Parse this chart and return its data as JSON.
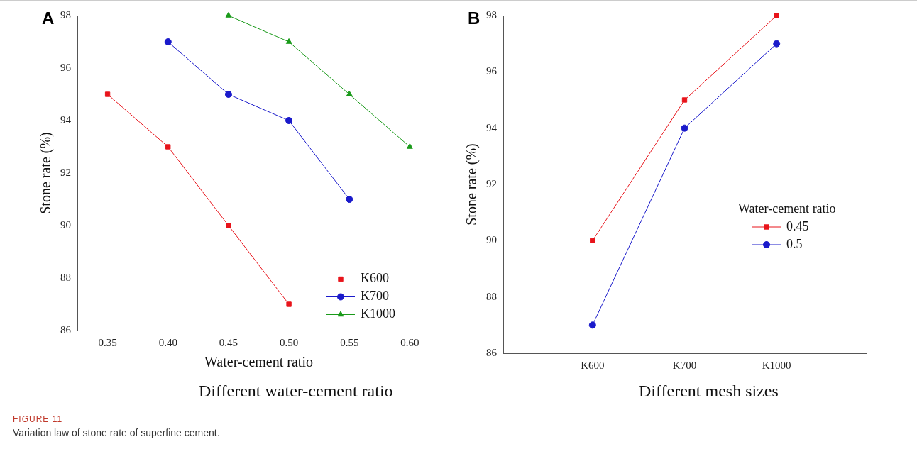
{
  "chart_data": [
    {
      "type": "line",
      "title": "A",
      "xlabel": "Water-cement ratio",
      "ylabel": "Stone rate (%)",
      "xlim": [
        0.325,
        0.625
      ],
      "xticks": [
        {
          "value": 0.35,
          "label": "0.35"
        },
        {
          "value": 0.4,
          "label": "0.40"
        },
        {
          "value": 0.45,
          "label": "0.45"
        },
        {
          "value": 0.5,
          "label": "0.50"
        },
        {
          "value": 0.55,
          "label": "0.55"
        },
        {
          "value": 0.6,
          "label": "0.60"
        }
      ],
      "ylim": [
        86,
        98
      ],
      "yticks": [
        86,
        88,
        90,
        92,
        94,
        96,
        98
      ],
      "grid": false,
      "legend": "bottom right",
      "series": [
        {
          "name": "K600",
          "color": "#e8141b",
          "marker": "square",
          "x": [
            0.35,
            0.4,
            0.45,
            0.5
          ],
          "values": [
            95,
            93,
            90,
            87
          ]
        },
        {
          "name": "K700",
          "color": "#1a1acb",
          "marker": "circle",
          "x": [
            0.4,
            0.45,
            0.5,
            0.55
          ],
          "values": [
            97,
            95,
            94,
            91
          ]
        },
        {
          "name": "K1000",
          "color": "#1a9a1a",
          "marker": "triangle",
          "x": [
            0.45,
            0.5,
            0.55,
            0.6
          ],
          "values": [
            98,
            97,
            95,
            93
          ]
        }
      ],
      "annotations": [
        "Different water-cement ratio",
        "FIGURE 11",
        "Variation law of stone rate of superfine cement."
      ]
    },
    {
      "type": "line",
      "title": "B",
      "ylabel": "Stone rate (%)",
      "categories": [
        "K600",
        "K700",
        "K1000"
      ],
      "ylim": [
        86,
        98
      ],
      "yticks": [
        86,
        88,
        90,
        92,
        94,
        96,
        98
      ],
      "grid": false,
      "legend": "right",
      "legend_title": "Water-cement ratio",
      "series": [
        {
          "name": "0.45",
          "color": "#e8141b",
          "marker": "square",
          "values": [
            90,
            95,
            98
          ]
        },
        {
          "name": "0.5",
          "color": "#1a1acb",
          "marker": "circle",
          "values": [
            87,
            94,
            97
          ]
        }
      ],
      "annotations": [
        "Different mesh sizes"
      ]
    }
  ]
}
